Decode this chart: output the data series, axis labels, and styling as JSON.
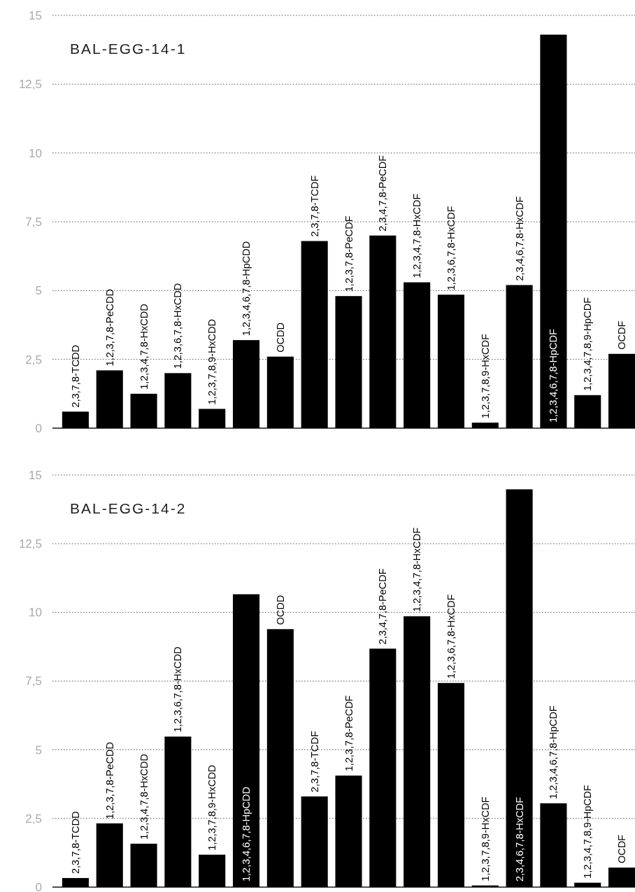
{
  "chart_data": [
    {
      "type": "bar",
      "title": "BAL-EGG-14-1",
      "categories": [
        "2,3,7,8-TCDD",
        "1,2,3,7,8-PeCDD",
        "1,2,3,4,7,8-HxCDD",
        "1,2,3,6,7,8-HxCDD",
        "1,2,3,7,8,9-HxCDD",
        "1,2,3,4,6,7,8-HpCDD",
        "OCDD",
        "2,3,7,8-TCDF",
        "1,2,3,7,8-PeCDF",
        "2,3,4,7,8-PeCDF",
        "1,2,3,4,7,8-HxCDF",
        "1,2,3,6,7,8-HxCDF",
        "1,2,3,7,8,9-HxCDF",
        "2,3,4,6,7,8-HxCDF",
        "1,2,3,4,6,7,8-HpCDF",
        "1,2,3,4,7,8,9-HpCDF",
        "OCDF"
      ],
      "values": [
        0.6,
        2.1,
        1.25,
        2.0,
        0.7,
        3.2,
        2.6,
        6.8,
        4.8,
        7.0,
        5.3,
        4.85,
        0.2,
        5.2,
        14.3,
        1.2,
        2.7
      ],
      "color": "#000000",
      "ylim": [
        0,
        15
      ],
      "yticks": [
        0,
        {
          "value": 2.5,
          "label": "2,5"
        },
        5,
        {
          "value": 7.5,
          "label": "7,5"
        },
        10,
        {
          "value": 12.5,
          "label": "12,5"
        },
        15
      ],
      "grid": "y"
    },
    {
      "type": "bar",
      "title": "BAL-EGG-14-2",
      "categories": [
        "2,3,7,8-TCDD",
        "1,2,3,7,8-PeCDD",
        "1,2,3,4,7,8-HxCDD",
        "1,2,3,6,7,8-HxCDD",
        "1,2,3,7,8,9-HxCDD",
        "1,2,3,4,6,7,8-HpCDD",
        "OCDD",
        "2,3,7,8-TCDF",
        "1,2,3,7,8-PeCDF",
        "2,3,4,7,8-PeCDF",
        "1,2,3,4,7,8-HxCDF",
        "1,2,3,6,7,8-HxCDF",
        "1,2,3,7,8,9-HxCDF",
        "2,3,4,6,7,8-HxCDF",
        "1,2,3,4,6,7,8-HpCDF",
        "1,2,3,4,7,8,9-HpCDF",
        "OCDF"
      ],
      "values": [
        0.33,
        2.32,
        1.58,
        5.48,
        1.18,
        10.66,
        9.39,
        3.3,
        4.06,
        8.68,
        9.86,
        7.43,
        0.06,
        14.48,
        3.05,
        0.16,
        0.71
      ],
      "color": "#000000",
      "ylim": [
        0,
        15
      ],
      "yticks": [
        0,
        {
          "value": 2.5,
          "label": "2,5"
        },
        5,
        {
          "value": 7.5,
          "label": "7,5"
        },
        10,
        {
          "value": 12.5,
          "label": "12,5"
        },
        15
      ],
      "grid": "y"
    }
  ]
}
